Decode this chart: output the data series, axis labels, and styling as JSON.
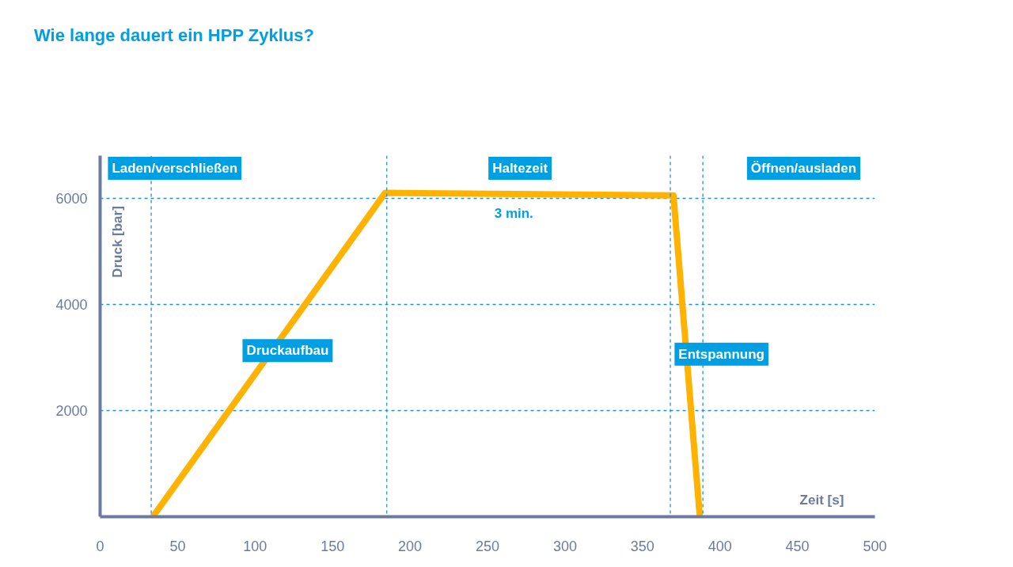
{
  "chart_data": {
    "type": "line",
    "title": "Wie lange dauert ein HPP Zyklus?",
    "xlabel": "Zeit [s]",
    "ylabel": "Druck [bar]",
    "x": [
      34,
      184,
      370,
      387
    ],
    "series": [
      {
        "color": "#ffb300",
        "values": [
          0,
          6100,
          6050,
          0
        ]
      }
    ],
    "xlim": [
      0,
      500
    ],
    "xticks": [
      0,
      50,
      100,
      150,
      200,
      250,
      300,
      350,
      400,
      450,
      500
    ],
    "ylim": [
      0,
      6800
    ],
    "yticks": [
      2000,
      4000,
      6000
    ],
    "grid": "y",
    "marker": "none",
    "line_style": "solid",
    "ref_lines": [
      {
        "axis": "x",
        "value": 33,
        "color": "#1e90e0",
        "line_style": "dashed"
      },
      {
        "axis": "x",
        "value": 185,
        "color": "#1e90e0",
        "line_style": "dashed"
      },
      {
        "axis": "x",
        "value": 368,
        "color": "#1e90e0",
        "line_style": "dashed"
      },
      {
        "axis": "x",
        "value": 389,
        "color": "#1e90e0",
        "line_style": "dashed"
      }
    ],
    "annotations": [
      "Laden/verschließen",
      "Haltezeit",
      "Öffnen/ausladen",
      "Druckaufbau",
      "Entspannung",
      "3 min."
    ]
  }
}
